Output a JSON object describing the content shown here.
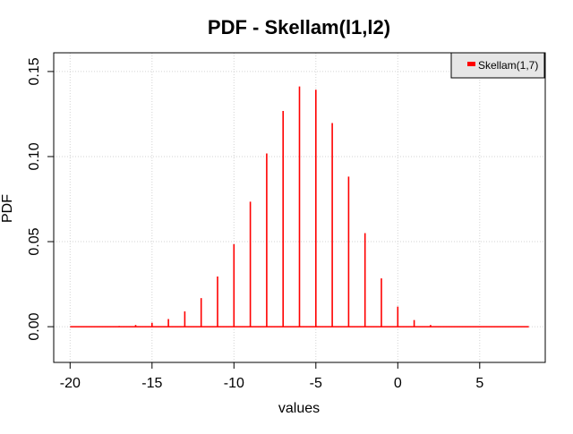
{
  "chart_data": {
    "type": "bar",
    "title": "PDF - Skellam(l1,l2)",
    "xlabel": "values",
    "ylabel": "PDF",
    "xlim": [
      -21,
      9
    ],
    "ylim": [
      -0.021,
      0.161
    ],
    "xticks": [
      -20,
      -15,
      -10,
      -5,
      0,
      5
    ],
    "xtick_labels": [
      "-20",
      "-15",
      "-10",
      "-5",
      "0",
      "5"
    ],
    "yticks": [
      0.0,
      0.05,
      0.1,
      0.15
    ],
    "ytick_labels": [
      "0.00",
      "0.05",
      "0.10",
      "0.15"
    ],
    "grid": true,
    "legend_position": "top-right",
    "series": [
      {
        "name": "Skellam(1,7)",
        "color": "#ff0000",
        "x": [
          -20,
          -19,
          -18,
          -17,
          -16,
          -15,
          -14,
          -13,
          -12,
          -11,
          -10,
          -9,
          -8,
          -7,
          -6,
          -5,
          -4,
          -3,
          -2,
          -1,
          0,
          1,
          2,
          3,
          4,
          5,
          6,
          7,
          8
        ],
        "values": [
          0.0,
          0.0001,
          0.0002,
          0.0004,
          0.001,
          0.0023,
          0.0045,
          0.009,
          0.0168,
          0.0295,
          0.0485,
          0.0735,
          0.1018,
          0.1268,
          0.1412,
          0.1393,
          0.1197,
          0.0882,
          0.055,
          0.0284,
          0.0118,
          0.0039,
          0.001,
          0.0002,
          0.0,
          0.0,
          0.0,
          0.0,
          0.0
        ]
      }
    ]
  }
}
